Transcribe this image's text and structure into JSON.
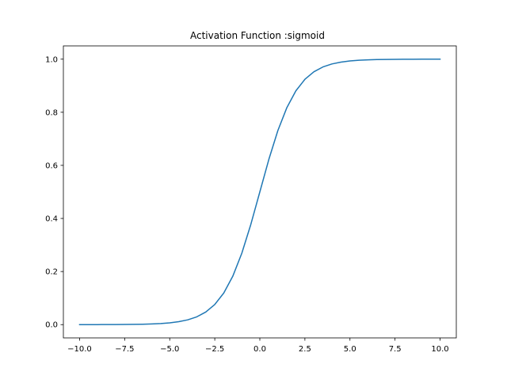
{
  "chart_data": {
    "type": "line",
    "title": "Activation Function :sigmoid",
    "xlabel": "",
    "ylabel": "",
    "xlim": [
      -10.9,
      10.9
    ],
    "ylim": [
      -0.05,
      1.05
    ],
    "x_ticks": [
      -10.0,
      -7.5,
      -5.0,
      -2.5,
      0.0,
      2.5,
      5.0,
      7.5,
      10.0
    ],
    "x_tick_labels": [
      "−10.0",
      "−7.5",
      "−5.0",
      "−2.5",
      "0.0",
      "2.5",
      "5.0",
      "7.5",
      "10.0"
    ],
    "y_ticks": [
      0.0,
      0.2,
      0.4,
      0.6,
      0.8,
      1.0
    ],
    "y_tick_labels": [
      "0.0",
      "0.2",
      "0.4",
      "0.6",
      "0.8",
      "1.0"
    ],
    "grid": false,
    "legend": "none",
    "line_color": "#1f77b4",
    "series": [
      {
        "x": [
          -10.0,
          -9.5,
          -9.0,
          -8.5,
          -8.0,
          -7.5,
          -7.0,
          -6.5,
          -6.0,
          -5.5,
          -5.0,
          -4.5,
          -4.0,
          -3.5,
          -3.0,
          -2.5,
          -2.0,
          -1.5,
          -1.0,
          -0.5,
          0.0,
          0.5,
          1.0,
          1.5,
          2.0,
          2.5,
          3.0,
          3.5,
          4.0,
          4.5,
          5.0,
          5.5,
          6.0,
          6.5,
          7.0,
          7.5,
          8.0,
          8.5,
          9.0,
          9.5,
          10.0
        ],
        "y": [
          0.0,
          0.0001,
          0.0001,
          0.0002,
          0.0003,
          0.0006,
          0.0009,
          0.0015,
          0.0025,
          0.0041,
          0.0067,
          0.011,
          0.018,
          0.0293,
          0.0474,
          0.0759,
          0.1192,
          0.1824,
          0.2689,
          0.3775,
          0.5,
          0.6225,
          0.7311,
          0.8176,
          0.8808,
          0.9241,
          0.9526,
          0.9707,
          0.982,
          0.989,
          0.9933,
          0.9959,
          0.9975,
          0.9985,
          0.9991,
          0.9994,
          0.9997,
          0.9998,
          0.9999,
          0.9999,
          1.0
        ]
      }
    ]
  }
}
